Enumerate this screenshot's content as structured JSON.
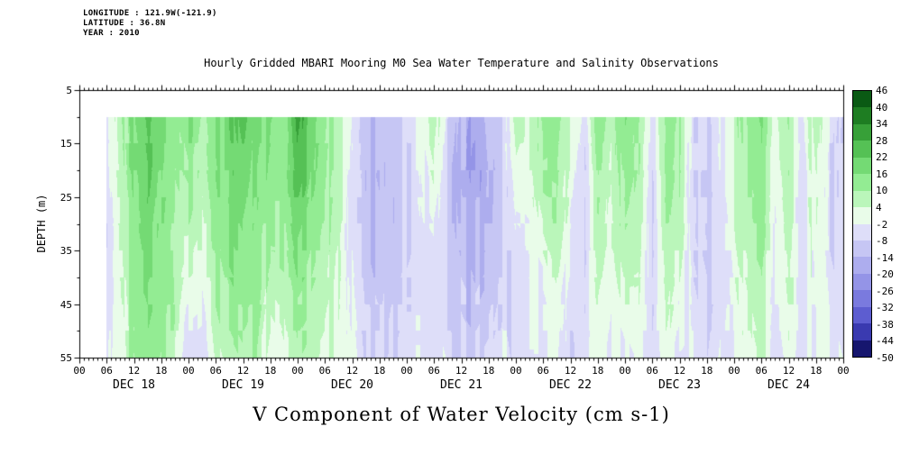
{
  "header": {
    "longitude": "LONGITUDE : 121.9W(-121.9)",
    "latitude": "LATITUDE : 36.8N",
    "year": "YEAR : 2010"
  },
  "chart_data": {
    "type": "heatmap",
    "title": "Hourly Gridded MBARI Mooring M0 Sea Water Temperature and Salinity Observations",
    "xlabel": "V Component of Water Velocity (cm s-1)",
    "ylabel": "DEPTH (m)",
    "x_unit": "hours since DEC 18 2010 00:00",
    "x_range_hours": [
      0,
      168
    ],
    "x_tick_step_hours": 6,
    "x_tick_labels": [
      "00",
      "06",
      "12",
      "18",
      "00",
      "06",
      "12",
      "18",
      "00",
      "06",
      "12",
      "18",
      "00",
      "06",
      "12",
      "18",
      "00",
      "06",
      "12",
      "18",
      "00",
      "06",
      "12",
      "18",
      "00",
      "06",
      "12",
      "18",
      "00"
    ],
    "day_labels": [
      "DEC 18",
      "DEC 19",
      "DEC 20",
      "DEC 21",
      "DEC 22",
      "DEC 23",
      "DEC 24"
    ],
    "y_ticks": [
      5,
      15,
      25,
      35,
      45,
      55
    ],
    "y_range": [
      5,
      55
    ],
    "data_extent": {
      "hours": [
        6,
        168
      ],
      "depths": [
        10,
        55
      ]
    },
    "missing_color": "#ffffff",
    "stripe_noise_amplitude": 3,
    "speckle_noise_amplitude": 1.5,
    "colorbar": {
      "levels": [
        -50,
        -44,
        -38,
        -32,
        -26,
        -20,
        -14,
        -8,
        -2,
        4,
        10,
        16,
        22,
        28,
        34,
        40,
        46
      ],
      "labels": [
        "46",
        "40",
        "34",
        "28",
        "22",
        "16",
        "10",
        "4",
        "-2",
        "-8",
        "-14",
        "-20",
        "-26",
        "-32",
        "-38",
        "-44",
        "-50"
      ],
      "colors": [
        "#16166e",
        "#3a3ab0",
        "#5d5dd0",
        "#7a7ade",
        "#9494e7",
        "#adadee",
        "#c6c6f4",
        "#dedef9",
        "#e9fce9",
        "#baf6ba",
        "#93ec93",
        "#74da74",
        "#55c155",
        "#37a038",
        "#1e7d22",
        "#0a5a14"
      ]
    },
    "grid": {
      "x_hours": [
        6,
        9,
        12,
        15,
        18,
        21,
        24,
        27,
        30,
        33,
        36,
        39,
        42,
        45,
        48,
        51,
        54,
        57,
        60,
        63,
        66,
        69,
        72,
        75,
        78,
        81,
        84,
        87,
        90,
        93,
        96,
        99,
        102,
        105,
        108,
        111,
        114,
        117,
        120,
        123,
        126,
        129,
        132,
        135,
        138,
        141,
        144,
        147,
        150,
        153,
        156,
        159,
        162,
        165,
        168
      ],
      "depths": [
        10,
        21,
        32,
        44,
        55
      ],
      "values": [
        [
          -4,
          10,
          18,
          22,
          16,
          12,
          14,
          10,
          16,
          20,
          26,
          18,
          14,
          12,
          30,
          20,
          14,
          8,
          -4,
          -12,
          -14,
          -8,
          -6,
          0,
          8,
          -6,
          -14,
          -18,
          -12,
          -8,
          10,
          4,
          14,
          12,
          6,
          -4,
          14,
          6,
          18,
          12,
          -4,
          14,
          10,
          -6,
          -8,
          0,
          6,
          12,
          14,
          4,
          10,
          -2,
          8,
          -4,
          -8
        ],
        [
          -6,
          8,
          16,
          20,
          16,
          10,
          12,
          8,
          14,
          18,
          22,
          16,
          12,
          12,
          24,
          18,
          12,
          6,
          -6,
          -14,
          -16,
          -10,
          -8,
          -4,
          2,
          -10,
          -16,
          -20,
          -14,
          -10,
          4,
          2,
          10,
          10,
          2,
          -8,
          10,
          4,
          14,
          10,
          -6,
          12,
          8,
          -8,
          -10,
          -2,
          4,
          10,
          12,
          2,
          8,
          -4,
          6,
          -6,
          -8
        ],
        [
          -8,
          6,
          14,
          18,
          14,
          8,
          8,
          4,
          12,
          16,
          18,
          14,
          10,
          10,
          18,
          14,
          10,
          4,
          -6,
          -12,
          -14,
          -10,
          -8,
          -6,
          -4,
          -10,
          -14,
          -16,
          -14,
          -8,
          -2,
          0,
          4,
          8,
          -2,
          -8,
          8,
          2,
          10,
          8,
          -8,
          10,
          6,
          -8,
          -10,
          -4,
          2,
          8,
          10,
          0,
          6,
          -4,
          4,
          -6,
          -8
        ],
        [
          -6,
          4,
          12,
          14,
          12,
          8,
          0,
          -2,
          8,
          12,
          14,
          12,
          4,
          6,
          12,
          10,
          8,
          2,
          -4,
          -10,
          -12,
          -8,
          -6,
          -6,
          -6,
          -8,
          -10,
          -12,
          -10,
          -6,
          -6,
          -2,
          -2,
          2,
          -6,
          -6,
          4,
          0,
          4,
          4,
          -6,
          6,
          0,
          -6,
          -8,
          -4,
          0,
          4,
          6,
          0,
          4,
          -2,
          2,
          -4,
          -6
        ],
        [
          -4,
          4,
          10,
          12,
          10,
          6,
          -6,
          -6,
          4,
          8,
          10,
          8,
          -2,
          2,
          8,
          6,
          4,
          0,
          -2,
          -8,
          -8,
          -6,
          -4,
          -4,
          -4,
          -6,
          -8,
          -8,
          -6,
          -4,
          -6,
          -4,
          -4,
          0,
          -8,
          -4,
          2,
          -2,
          0,
          2,
          -4,
          2,
          -4,
          -4,
          -6,
          -2,
          0,
          2,
          4,
          -2,
          2,
          -2,
          0,
          -2,
          -4
        ]
      ]
    }
  }
}
